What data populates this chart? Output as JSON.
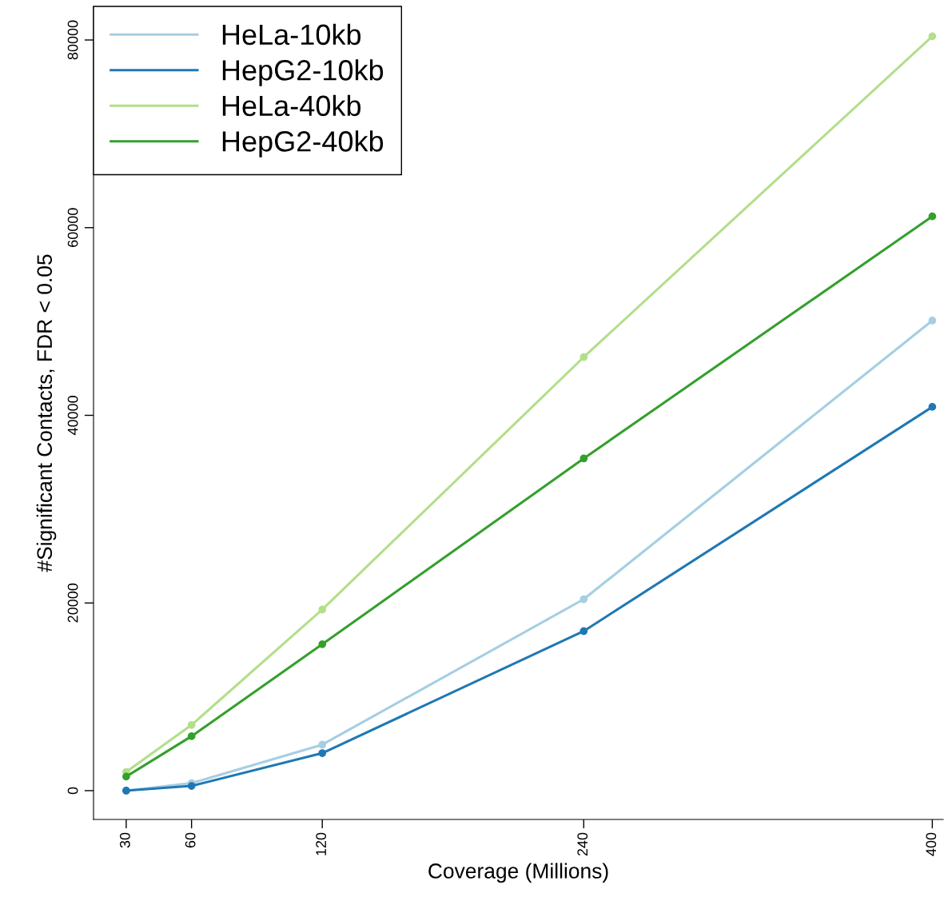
{
  "chart_data": {
    "type": "line",
    "xlabel": "Coverage (Millions)",
    "ylabel": "#Significant Contacts, FDR < 0.05",
    "x": [
      30,
      60,
      120,
      240,
      400
    ],
    "series": [
      {
        "name": "HeLa-10kb",
        "color": "#a6cee3",
        "values": [
          0,
          800,
          4900,
          20400,
          50100
        ]
      },
      {
        "name": "HepG2-10kb",
        "color": "#1f78b4",
        "values": [
          0,
          500,
          4000,
          17000,
          40900
        ]
      },
      {
        "name": "HeLa-40kb",
        "color": "#b2df8a",
        "values": [
          2000,
          7000,
          19300,
          46200,
          80400
        ]
      },
      {
        "name": "HepG2-40kb",
        "color": "#33a02c",
        "values": [
          1500,
          5800,
          15600,
          35400,
          61200
        ]
      }
    ],
    "xlim": [
      15,
      405
    ],
    "ylim": [
      -3070,
      83580
    ],
    "xticks": [
      30,
      60,
      120,
      240,
      400
    ],
    "yticks": [
      0,
      20000,
      40000,
      60000,
      80000
    ],
    "marker": "circle",
    "line_style": "solid",
    "grid": false,
    "legend": "top left"
  }
}
